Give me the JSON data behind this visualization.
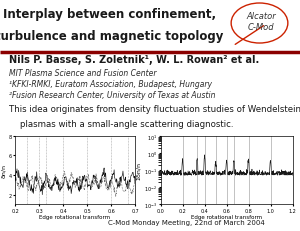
{
  "title_line1": "Interplay between confinement,",
  "title_line2": "turbulence and magnetic topology",
  "logo_text_line1": "Alcator",
  "logo_text_line2": "C-Mod",
  "author_line": "Nils P. Basse, S. Zoletnik¹, W. L. Rowan² et al.",
  "affil1": "MIT Plasma Science and Fusion Center",
  "affil2": "¹KFKI-RMKI, Euratom Association, Budapest, Hungary",
  "affil3": "²Fusion Research Center, University of Texas at Austin",
  "body_text_line1": "This idea originates from density fluctuation studies of Wendelstein 7-AS",
  "body_text_line2": "    plasmas with a small-angle scattering diagnostic.",
  "footer": "C-Mod Monday Meeting, 22nd of March 2004",
  "bg_color": "#ffffff",
  "title_color": "#1a1a1a",
  "header_bar_color": "#8b0000",
  "logo_color": "#cc2200",
  "xlabel": "Edge rotational transform",
  "panel1_ylabel": "δn/n",
  "panel2_ylabel": "Σδn/n",
  "title_fontsize": 8.5,
  "body_fontsize": 6.2,
  "author_fontsize": 7.0,
  "affil_fontsize": 5.5,
  "footer_fontsize": 5.0
}
